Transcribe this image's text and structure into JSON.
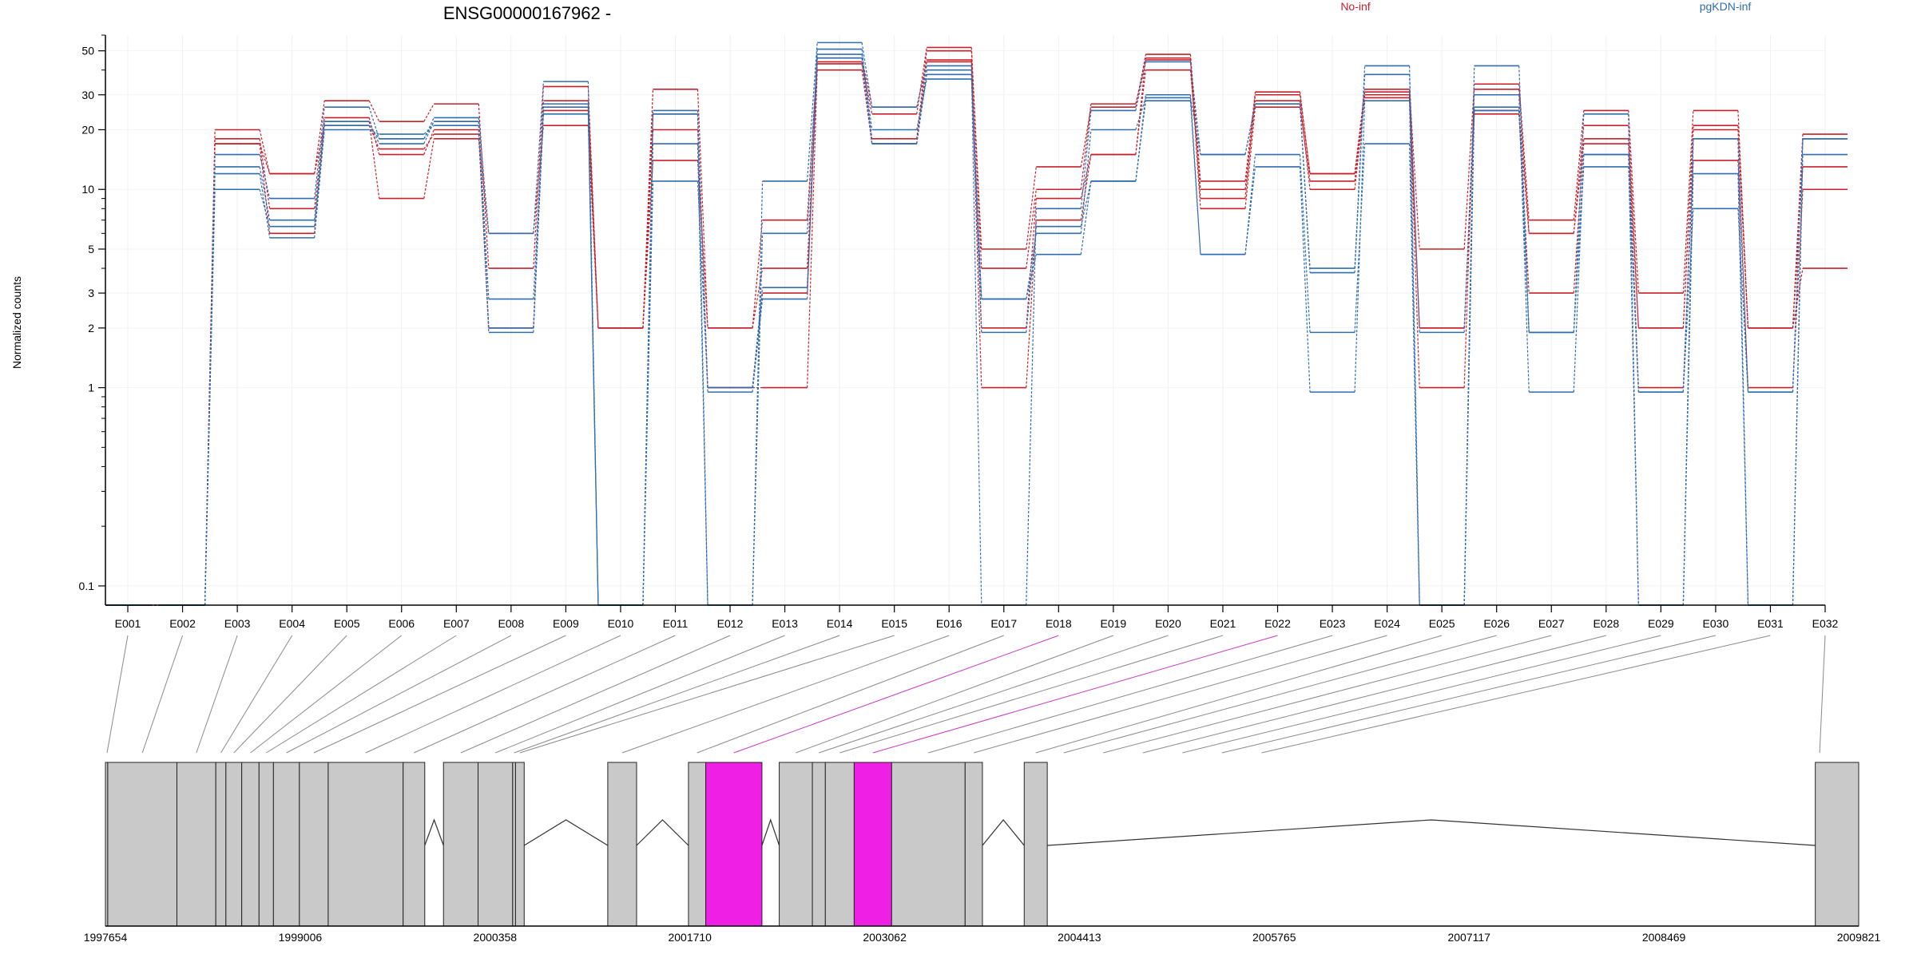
{
  "chart_data": {
    "type": "line",
    "title": "ENSG00000167962 -",
    "ylabel": "Normalized counts",
    "yscale": "log",
    "ylim": [
      0.08,
      60
    ],
    "yticks": [
      0.1,
      1,
      2,
      3,
      5,
      10,
      20,
      30,
      50
    ],
    "ytick_labels": [
      "0.1",
      "1",
      "2",
      "3",
      "5",
      "10",
      "20",
      "30",
      "50"
    ],
    "grid": true,
    "legend_position": "top",
    "categories": [
      "E001",
      "E002",
      "E003",
      "E004",
      "E005",
      "E006",
      "E007",
      "E008",
      "E009",
      "E010",
      "E011",
      "E012",
      "E013",
      "E014",
      "E015",
      "E016",
      "E017",
      "E018",
      "E019",
      "E020",
      "E021",
      "E022",
      "E023",
      "E024",
      "E025",
      "E026",
      "E027",
      "E028",
      "E029",
      "E030",
      "E031",
      "E032"
    ],
    "groups": [
      {
        "name": "No-inf",
        "color": "#c8202a"
      },
      {
        "name": "pgKDN-inf",
        "color": "#2f6db0"
      }
    ],
    "series": [
      {
        "group": "No-inf",
        "values": [
          0.08,
          0.08,
          20,
          12,
          28,
          22,
          27,
          4,
          33,
          2,
          32,
          2,
          4,
          43,
          24,
          52,
          5,
          13,
          26,
          48,
          11,
          31,
          12,
          32,
          5,
          34,
          7,
          25,
          3,
          25,
          2,
          19
        ]
      },
      {
        "group": "No-inf",
        "values": [
          0.08,
          0.08,
          18,
          8,
          23,
          15,
          20,
          2,
          25,
          2,
          24,
          1,
          3,
          44,
          18,
          50,
          4,
          10,
          27,
          45,
          8,
          26,
          11,
          30,
          1,
          32,
          6,
          21,
          2,
          21,
          2,
          13
        ]
      },
      {
        "group": "No-inf",
        "values": [
          0.08,
          0.08,
          17,
          6,
          22,
          9,
          18,
          6,
          21,
          2,
          20,
          1,
          1,
          40,
          17,
          45,
          1,
          7,
          15,
          40,
          10,
          28,
          10,
          29,
          2,
          24,
          3,
          18,
          1,
          14,
          1,
          10
        ]
      },
      {
        "group": "No-inf",
        "values": [
          0.08,
          0.08,
          17,
          12,
          21,
          16,
          19,
          2,
          28,
          2,
          14,
          2,
          7,
          46,
          26,
          44,
          2,
          9,
          15,
          46,
          9,
          30,
          12,
          31,
          2,
          25,
          6,
          17,
          2,
          20,
          2,
          4
        ]
      },
      {
        "group": "pgKDN-inf",
        "values": [
          0.08,
          0.08,
          15,
          9,
          26,
          18,
          23,
          6,
          35,
          0.08,
          25,
          0.08,
          11,
          55,
          26,
          42,
          0.08,
          8,
          25,
          44,
          15,
          27,
          4,
          42,
          0.08,
          42,
          1.9,
          24,
          0.08,
          18,
          0.08,
          18
        ]
      },
      {
        "group": "pgKDN-inf",
        "values": [
          0.08,
          0.08,
          13,
          7,
          22,
          17,
          22,
          2,
          27,
          0.08,
          17,
          0.08,
          6,
          48,
          20,
          36,
          2.8,
          6,
          20,
          29,
          15,
          27,
          3.8,
          38,
          1.9,
          30,
          0.95,
          15,
          0.08,
          12,
          0.08,
          15
        ]
      },
      {
        "group": "pgKDN-inf",
        "values": [
          0.08,
          0.08,
          12,
          5.7,
          20,
          19,
          21,
          1.9,
          24,
          0.08,
          11,
          1,
          3.2,
          46,
          17,
          40,
          2.8,
          4.7,
          11,
          28,
          4.7,
          15,
          1.9,
          17,
          0.08,
          26,
          1.9,
          13,
          0.95,
          8,
          0.95,
          18
        ]
      },
      {
        "group": "pgKDN-inf",
        "values": [
          0.08,
          0.08,
          10,
          6.5,
          21,
          18,
          22,
          2.8,
          26,
          0.08,
          24,
          0.95,
          2.8,
          51,
          17,
          38,
          1.9,
          6.5,
          11,
          30,
          4.7,
          13,
          0.95,
          28,
          0.08,
          25,
          1.9,
          15,
          0.95,
          18,
          0.95,
          18
        ]
      }
    ],
    "gene_model": {
      "coord_ticks": [
        "1997654",
        "1999006",
        "2000358",
        "2001710",
        "2003062",
        "2004413",
        "2005765",
        "2007117",
        "2008469",
        "2009821"
      ],
      "exons": [
        [
          0,
          1
        ],
        [
          1,
          5
        ],
        [
          5,
          6
        ],
        [
          6,
          7
        ],
        [
          7,
          8
        ],
        [
          8,
          9
        ],
        [
          9,
          10
        ],
        [
          10,
          11
        ],
        [
          11,
          12
        ],
        [
          12,
          13
        ],
        [
          13,
          14
        ],
        [
          14,
          15
        ],
        [
          15,
          16
        ],
        [
          16,
          17
        ],
        [
          17,
          18
        ],
        [
          18,
          19
        ],
        [
          19,
          20
        ],
        [
          20,
          21
        ],
        [
          21,
          22
        ],
        [
          22,
          23
        ],
        [
          23,
          24
        ],
        [
          24,
          25
        ],
        [
          25,
          26
        ],
        [
          26,
          27
        ],
        [
          27,
          28
        ],
        [
          28,
          29
        ],
        [
          29,
          30
        ],
        [
          30,
          31
        ],
        [
          31,
          32
        ]
      ],
      "exon_blocks": [
        {
          "exon": "E001",
          "start": 1997654,
          "end": 1997670,
          "highlight": false
        },
        {
          "exon": "E002",
          "start": 1997670,
          "end": 1998150,
          "highlight": false
        },
        {
          "exon": "E003",
          "start": 1998150,
          "end": 1998420,
          "highlight": false
        },
        {
          "exon": "E004",
          "start": 1998420,
          "end": 1998490,
          "highlight": false
        },
        {
          "exon": "E005",
          "start": 1998490,
          "end": 1998600,
          "highlight": false
        },
        {
          "exon": "E006",
          "start": 1998600,
          "end": 1998720,
          "highlight": false
        },
        {
          "exon": "E007",
          "start": 1998720,
          "end": 1998820,
          "highlight": false
        },
        {
          "exon": "E008",
          "start": 1998820,
          "end": 1999000,
          "highlight": false
        },
        {
          "exon": "E009",
          "start": 1999000,
          "end": 1999200,
          "highlight": false
        },
        {
          "exon": "E010",
          "start": 1999200,
          "end": 1999720,
          "highlight": false
        },
        {
          "exon": "E011",
          "start": 1999720,
          "end": 1999870,
          "highlight": false
        },
        {
          "exon": "E012",
          "start": 2000000,
          "end": 2000240,
          "highlight": false
        },
        {
          "exon": "E013",
          "start": 2000240,
          "end": 2000480,
          "highlight": false
        },
        {
          "exon": "E014",
          "start": 2000480,
          "end": 2000500,
          "highlight": false
        },
        {
          "exon": "E015",
          "start": 2000500,
          "end": 2000560,
          "highlight": false
        },
        {
          "exon": "E016",
          "start": 2001140,
          "end": 2001340,
          "highlight": false
        },
        {
          "exon": "E017",
          "start": 2001700,
          "end": 2001820,
          "highlight": false
        },
        {
          "exon": "E018",
          "start": 2001820,
          "end": 2002210,
          "highlight": true
        },
        {
          "exon": "E019",
          "start": 2002330,
          "end": 2002560,
          "highlight": false
        },
        {
          "exon": "E020",
          "start": 2002560,
          "end": 2002650,
          "highlight": false
        },
        {
          "exon": "E021",
          "start": 2002650,
          "end": 2002850,
          "highlight": false
        },
        {
          "exon": "E022",
          "start": 2002850,
          "end": 2003110,
          "highlight": true
        },
        {
          "exon": "E023",
          "start": 2003110,
          "end": 2003620,
          "highlight": false
        },
        {
          "exon": "E024",
          "start": 2003620,
          "end": 2003740,
          "highlight": false
        },
        {
          "exon": "E025",
          "start": 2004030,
          "end": 2004190,
          "highlight": false
        },
        {
          "exon": "E032",
          "start": 2009520,
          "end": 2009821,
          "highlight": false
        }
      ]
    }
  }
}
